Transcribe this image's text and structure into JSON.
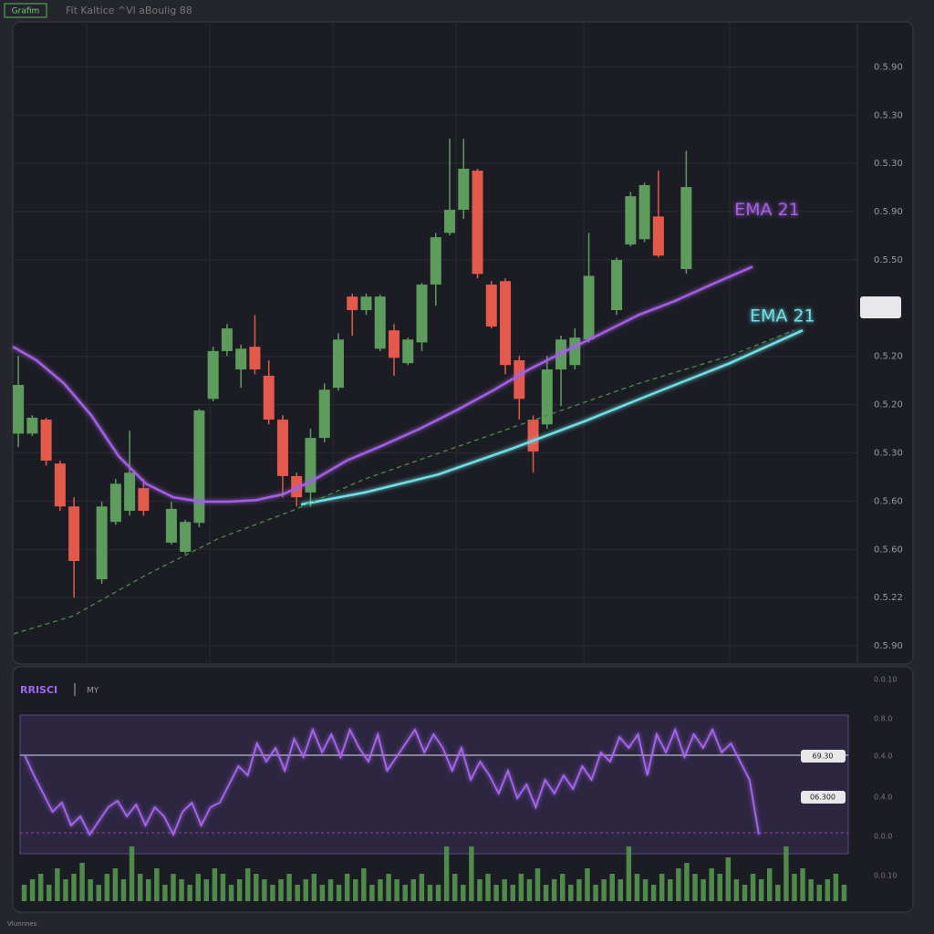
{
  "header": {
    "badge": "Grafim",
    "title": "Fit Kaltice ^Vl aBoulig 88"
  },
  "footer": "Vlunnnes",
  "chart_data": [
    {
      "type": "candlestick",
      "categories": [
        null,
        null,
        null,
        null,
        null,
        null,
        null,
        null,
        null,
        null,
        null,
        null,
        null,
        null,
        null,
        null,
        null,
        null,
        null,
        null,
        null,
        null,
        null,
        null,
        null,
        null,
        null,
        null,
        null,
        null,
        null,
        null,
        null,
        null,
        null,
        null,
        null,
        null,
        null,
        null,
        null,
        null,
        null,
        null,
        null,
        null,
        null,
        null,
        null
      ],
      "open": [
        4.4,
        4.4,
        4.69,
        3.78,
        2.89,
        null,
        1.38,
        2.57,
        2.8,
        3.27,
        null,
        2.14,
        1.95,
        2.55,
        5.12,
        6.11,
        5.73,
        6.2,
        5.6,
        4.69,
        3.52,
        3.18,
        4.31,
        5.35,
        7.24,
        6.96,
        6.16,
        6.54,
        5.86,
        6.29,
        7.49,
        8.56,
        9.04,
        9.85,
        7.49,
        7.56,
        5.92,
        4.69,
        4.59,
        5.73,
        5.82,
        6.35,
        null,
        6.96,
        8.32,
        8.43,
        8.9,
        null,
        7.81
      ],
      "high": [
        6.01,
        4.78,
        4.73,
        3.84,
        3.08,
        null,
        2.99,
        3.46,
        4.46,
        3.46,
        null,
        2.99,
        2.61,
        4.91,
        6.2,
        6.67,
        6.24,
        6.86,
        5.92,
        4.78,
        3.59,
        4.5,
        5.44,
        6.48,
        7.3,
        7.3,
        7.28,
        6.67,
        6.39,
        7.52,
        8.56,
        10.51,
        10.51,
        9.89,
        7.56,
        7.62,
        6.01,
        4.78,
        6.01,
        6.43,
        6.58,
        8.56,
        null,
        8.05,
        9.41,
        9.6,
        9.85,
        null,
        10.26
      ],
      "low": [
        4.12,
        4.35,
        3.74,
        2.8,
        1.0,
        null,
        1.29,
        2.51,
        2.7,
        2.7,
        null,
        2.1,
        1.91,
        2.46,
        5.07,
        6.01,
        5.35,
        5.63,
        4.59,
        3.08,
        2.89,
        2.89,
        4.22,
        5.29,
        6.43,
        6.86,
        6.11,
        5.6,
        5.82,
        6.11,
        7.05,
        8.51,
        8.85,
        7.62,
        6.58,
        5.63,
        4.69,
        3.59,
        4.5,
        4.97,
        5.73,
        6.29,
        null,
        6.86,
        8.28,
        8.37,
        8.05,
        null,
        7.71
      ],
      "close": [
        5.41,
        4.73,
        3.84,
        2.89,
        1.76,
        null,
        2.89,
        3.36,
        3.59,
        2.8,
        null,
        2.84,
        2.57,
        4.88,
        6.11,
        6.58,
        6.16,
        5.73,
        4.69,
        3.52,
        3.08,
        4.31,
        5.31,
        6.35,
        6.96,
        7.24,
        7.24,
        5.97,
        6.35,
        7.49,
        8.47,
        9.04,
        9.89,
        7.71,
        6.62,
        5.82,
        5.12,
        4.03,
        5.73,
        6.35,
        6.39,
        7.67,
        null,
        8.0,
        9.32,
        9.55,
        8.09,
        null,
        9.51
      ],
      "up_color": "#5e9c5e",
      "down_color": "#e3594c",
      "xlim": [
        -0.4,
        60.3
      ],
      "xticks": [
        4.92,
        13.77,
        22.62,
        31.47,
        40.64,
        51.13
      ],
      "ylim": [
        -0.13,
        12.82
      ],
      "yticks": [
        {
          "value": 12,
          "label": "0.5.90"
        },
        {
          "value": 11,
          "label": "0.5.30"
        },
        {
          "value": 10,
          "label": "0.5.30"
        },
        {
          "value": 9,
          "label": "0.5.90"
        },
        {
          "value": 8,
          "label": "0.5.50"
        },
        {
          "value": 6,
          "label": "0.5.20"
        },
        {
          "value": 5,
          "label": "0.5.20"
        },
        {
          "value": 4,
          "label": "0.5.30"
        },
        {
          "value": 3,
          "label": "0.5.60"
        },
        {
          "value": 2,
          "label": "0.5.60"
        },
        {
          "value": 1,
          "label": "0.5.22"
        },
        {
          "value": 0,
          "label": "0.5.90"
        }
      ],
      "grid": true,
      "lines": [
        {
          "name": "EMA 21",
          "color": "#a45ee5",
          "style": "solid",
          "x": [
            -0.39,
            1.31,
            3.28,
            5.24,
            7.21,
            9.18,
            11.14,
            13.11,
            15.08,
            17.04,
            19.01,
            20.98,
            23.6,
            26.22,
            28.84,
            31.47,
            34.09,
            36.71,
            39.33,
            41.95,
            44.58,
            47.2,
            49.82,
            52.77
          ],
          "values": [
            6.2,
            5.92,
            5.44,
            4.78,
            3.93,
            3.36,
            3.08,
            2.99,
            2.99,
            3.02,
            3.14,
            3.4,
            3.84,
            4.16,
            4.5,
            4.88,
            5.29,
            5.73,
            6.11,
            6.48,
            6.86,
            7.15,
            7.49,
            7.86
          ]
        },
        {
          "name": "EMA 21",
          "color": "#6fe0e6",
          "style": "solid",
          "x": [
            20.32,
            24.91,
            30.15,
            35.4,
            40.64,
            45.89,
            51.13,
            56.37
          ],
          "values": [
            2.93,
            3.18,
            3.55,
            4.08,
            4.65,
            5.26,
            5.86,
            6.54
          ]
        },
        {
          "color": "#4f8a4a",
          "style": "dashed",
          "x": [
            -0.33,
            3.93,
            9.18,
            14.42,
            19.67,
            24.91,
            31.47,
            38.02,
            44.58,
            51.13,
            55.72
          ],
          "values": [
            0.25,
            0.62,
            1.47,
            2.23,
            2.8,
            3.46,
            4.12,
            4.78,
            5.44,
            6.01,
            6.54
          ]
        }
      ]
    },
    {
      "type": "line",
      "title": "RRISCI",
      "subtitle": "MY",
      "categories": [
        null,
        null,
        null,
        null,
        null,
        null,
        null,
        null,
        null,
        null,
        null,
        null,
        null,
        null,
        null,
        null,
        null,
        null,
        null,
        null,
        null,
        null,
        null,
        null,
        null,
        null,
        null,
        null,
        null,
        null,
        null,
        null,
        null,
        null,
        null,
        null,
        null,
        null,
        null,
        null,
        null,
        null,
        null,
        null,
        null,
        null,
        null,
        null,
        null,
        null,
        null,
        null,
        null,
        null,
        null,
        null,
        null,
        null,
        null,
        null,
        null,
        null,
        null,
        null,
        null,
        null,
        null,
        null,
        null,
        null,
        null,
        null,
        null,
        null,
        null,
        null,
        null,
        null,
        null,
        null
      ],
      "series": [
        {
          "color": "#a866f0",
          "values": [
            56,
            45,
            35,
            25,
            30,
            17.5,
            22.5,
            12.5,
            20,
            27.5,
            31,
            22.5,
            29,
            17.5,
            27.5,
            22.5,
            12.5,
            25,
            30,
            17.5,
            27.5,
            30,
            40,
            50,
            45,
            62.5,
            52.5,
            60,
            47.5,
            65,
            55,
            70,
            57.5,
            67.5,
            55,
            70,
            60,
            52.5,
            67.5,
            47.5,
            55,
            62.5,
            70,
            57.5,
            67.5,
            60,
            47.5,
            60,
            42.5,
            52.5,
            45,
            35,
            47.5,
            32.5,
            40,
            27.5,
            42.5,
            35,
            45,
            37.5,
            50,
            42.5,
            57.5,
            52.5,
            66,
            60,
            67.5,
            45,
            67.5,
            57.5,
            70,
            55,
            67.5,
            60,
            70,
            57.5,
            62.5,
            52.5,
            42.5,
            12.5
          ]
        }
      ],
      "ylim": [
        0,
        100
      ],
      "yticks": [
        {
          "value": 97.5,
          "label": "0.0.10"
        },
        {
          "value": 76,
          "label": "0.8.0"
        },
        {
          "value": 55.5,
          "label": "0.4.0"
        },
        {
          "value": 33,
          "label": "0.4.0"
        },
        {
          "value": 11.5,
          "label": "0.0.0"
        }
      ],
      "hlines": [
        56,
        13.5
      ],
      "hline_styles": [
        "solid",
        "dashed"
      ],
      "tags": [
        {
          "value": 55.5,
          "label": "69.30"
        },
        {
          "value": 33,
          "label": "06.300"
        }
      ]
    },
    {
      "type": "bar",
      "categories": [
        null,
        null,
        null,
        null,
        null,
        null,
        null,
        null,
        null,
        null,
        null,
        null,
        null,
        null,
        null,
        null,
        null,
        null,
        null,
        null,
        null,
        null,
        null,
        null,
        null,
        null,
        null,
        null,
        null,
        null,
        null,
        null,
        null,
        null,
        null,
        null,
        null,
        null,
        null,
        null,
        null,
        null,
        null,
        null,
        null,
        null,
        null,
        null,
        null,
        null,
        null,
        null,
        null,
        null,
        null,
        null,
        null,
        null,
        null,
        null,
        null,
        null,
        null,
        null,
        null,
        null,
        null,
        null,
        null,
        null,
        null,
        null,
        null,
        null,
        null,
        null,
        null,
        null,
        null,
        null,
        null,
        null,
        null,
        null,
        null,
        null,
        null,
        null,
        null,
        null,
        null,
        null,
        null,
        null,
        null,
        null,
        null,
        null,
        null,
        null
      ],
      "values": [
        3,
        4,
        5,
        3,
        6,
        4,
        5,
        7,
        4,
        3,
        5,
        6,
        4,
        10,
        5,
        4,
        6,
        3,
        5,
        4,
        3,
        5,
        4,
        6,
        5,
        3,
        4,
        6,
        5,
        4,
        3,
        4,
        5,
        3,
        4,
        5,
        3,
        4,
        3,
        5,
        4,
        6,
        3,
        4,
        5,
        4,
        3,
        4,
        5,
        3,
        3,
        10,
        5,
        3,
        10,
        4,
        5,
        3,
        4,
        3,
        5,
        4,
        6,
        3,
        4,
        5,
        3,
        4,
        6,
        3,
        4,
        5,
        4,
        10,
        5,
        4,
        3,
        5,
        4,
        6,
        7,
        5,
        4,
        6,
        5,
        8,
        4,
        3,
        5,
        4,
        6,
        3,
        10,
        5,
        6,
        4,
        3,
        4,
        5,
        3
      ],
      "color": "#4f8a4a",
      "ylim": [
        0,
        10
      ],
      "yticks": [
        {
          "value": 4.67,
          "label": "0.0.10"
        }
      ],
      "grid": false
    }
  ]
}
